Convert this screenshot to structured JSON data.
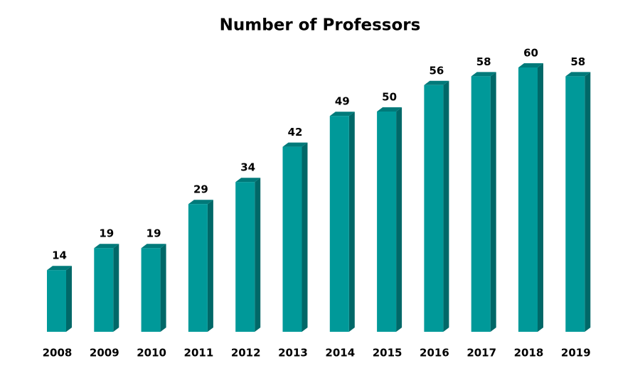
{
  "chart_data": {
    "type": "bar3d",
    "title": "Number of Professors",
    "categories": [
      "2008",
      "2009",
      "2010",
      "2011",
      "2012",
      "2013",
      "2014",
      "2015",
      "2016",
      "2017",
      "2018",
      "2019"
    ],
    "values": [
      14,
      19,
      19,
      29,
      34,
      42,
      49,
      50,
      56,
      58,
      60,
      58
    ],
    "color": "#009999"
  }
}
